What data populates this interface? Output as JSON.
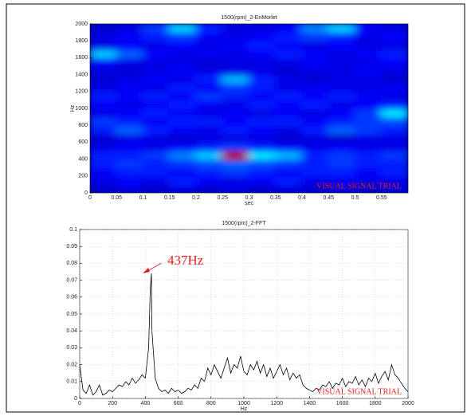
{
  "chart_data": [
    {
      "type": "heatmap",
      "title": "1500(rpm)_2-EnMorlet",
      "xlabel": "sec",
      "ylabel": "Hz",
      "colormap": "jet",
      "watermark": "VISUAL SIGNAL TRIAL",
      "x": [
        0.025,
        0.075,
        0.125,
        0.175,
        0.225,
        0.275,
        0.325,
        0.375,
        0.425,
        0.475,
        0.525,
        0.575
      ],
      "y": [
        50,
        150,
        250,
        350,
        450,
        550,
        650,
        750,
        850,
        950,
        1050,
        1150,
        1250,
        1350,
        1450,
        1550,
        1650,
        1750,
        1850,
        1950
      ],
      "values": [
        [
          0.08,
          0.1,
          0.08,
          0.1,
          0.08,
          0.1,
          0.08,
          0.1,
          0.08,
          0.1,
          0.08,
          0.1
        ],
        [
          0.1,
          0.12,
          0.1,
          0.15,
          0.12,
          0.1,
          0.12,
          0.15,
          0.1,
          0.12,
          0.1,
          0.1
        ],
        [
          0.12,
          0.15,
          0.15,
          0.12,
          0.15,
          0.18,
          0.15,
          0.12,
          0.15,
          0.15,
          0.12,
          0.15
        ],
        [
          0.15,
          0.18,
          0.15,
          0.18,
          0.2,
          0.22,
          0.2,
          0.18,
          0.15,
          0.18,
          0.15,
          0.15
        ],
        [
          0.15,
          0.15,
          0.18,
          0.25,
          0.32,
          0.95,
          0.35,
          0.3,
          0.15,
          0.18,
          0.15,
          0.18
        ],
        [
          0.1,
          0.12,
          0.1,
          0.12,
          0.15,
          0.18,
          0.15,
          0.12,
          0.1,
          0.12,
          0.1,
          0.1
        ],
        [
          0.08,
          0.1,
          0.1,
          0.08,
          0.1,
          0.1,
          0.1,
          0.08,
          0.1,
          0.08,
          0.1,
          0.1
        ],
        [
          0.15,
          0.22,
          0.15,
          0.12,
          0.1,
          0.15,
          0.12,
          0.1,
          0.15,
          0.22,
          0.18,
          0.15
        ],
        [
          0.18,
          0.15,
          0.12,
          0.15,
          0.15,
          0.12,
          0.15,
          0.15,
          0.12,
          0.15,
          0.18,
          0.2
        ],
        [
          0.1,
          0.12,
          0.15,
          0.12,
          0.1,
          0.12,
          0.1,
          0.12,
          0.1,
          0.12,
          0.18,
          0.35
        ],
        [
          0.12,
          0.1,
          0.12,
          0.15,
          0.12,
          0.1,
          0.15,
          0.12,
          0.15,
          0.1,
          0.12,
          0.15
        ],
        [
          0.15,
          0.12,
          0.15,
          0.12,
          0.18,
          0.15,
          0.12,
          0.15,
          0.12,
          0.15,
          0.12,
          0.1
        ],
        [
          0.1,
          0.12,
          0.1,
          0.15,
          0.12,
          0.18,
          0.15,
          0.1,
          0.12,
          0.1,
          0.1,
          0.12
        ],
        [
          0.08,
          0.1,
          0.12,
          0.1,
          0.15,
          0.3,
          0.15,
          0.1,
          0.08,
          0.1,
          0.1,
          0.08
        ],
        [
          0.1,
          0.08,
          0.1,
          0.12,
          0.1,
          0.1,
          0.1,
          0.08,
          0.1,
          0.1,
          0.12,
          0.1
        ],
        [
          0.12,
          0.1,
          0.1,
          0.1,
          0.08,
          0.1,
          0.1,
          0.1,
          0.12,
          0.1,
          0.1,
          0.12
        ],
        [
          0.32,
          0.22,
          0.12,
          0.1,
          0.12,
          0.1,
          0.12,
          0.15,
          0.12,
          0.1,
          0.12,
          0.15
        ],
        [
          0.1,
          0.12,
          0.1,
          0.12,
          0.1,
          0.12,
          0.15,
          0.12,
          0.1,
          0.12,
          0.1,
          0.1
        ],
        [
          0.1,
          0.12,
          0.15,
          0.18,
          0.12,
          0.1,
          0.12,
          0.15,
          0.18,
          0.15,
          0.1,
          0.12
        ],
        [
          0.08,
          0.1,
          0.18,
          0.32,
          0.15,
          0.1,
          0.1,
          0.12,
          0.25,
          0.32,
          0.12,
          0.1
        ]
      ],
      "xlim": [
        0,
        0.6
      ],
      "ylim": [
        0,
        2000
      ],
      "xticks": [
        0,
        0.05,
        0.1,
        0.15,
        0.2,
        0.25,
        0.3,
        0.35,
        0.4,
        0.45,
        0.5,
        0.55
      ],
      "yticks": [
        0,
        200,
        400,
        600,
        800,
        1000,
        1200,
        1400,
        1600,
        1800,
        2000
      ]
    },
    {
      "type": "line",
      "title": "1500(rpm)_2-FFT",
      "xlabel": "Hz",
      "annotation": "437Hz",
      "watermark": "VISUAL SIGNAL TRIAL",
      "color": "#000000",
      "grid": true,
      "x": [
        0,
        20,
        40,
        60,
        80,
        100,
        120,
        140,
        160,
        180,
        200,
        220,
        240,
        260,
        280,
        300,
        320,
        340,
        360,
        380,
        400,
        420,
        430,
        437,
        440,
        460,
        480,
        500,
        520,
        540,
        560,
        580,
        600,
        620,
        640,
        660,
        680,
        700,
        720,
        740,
        760,
        780,
        800,
        820,
        840,
        860,
        880,
        900,
        920,
        940,
        960,
        980,
        1000,
        1020,
        1040,
        1060,
        1080,
        1100,
        1120,
        1140,
        1160,
        1180,
        1200,
        1220,
        1240,
        1260,
        1280,
        1300,
        1320,
        1340,
        1360,
        1380,
        1400,
        1420,
        1440,
        1460,
        1480,
        1500,
        1520,
        1540,
        1560,
        1580,
        1600,
        1620,
        1640,
        1660,
        1680,
        1700,
        1720,
        1740,
        1760,
        1780,
        1800,
        1820,
        1840,
        1860,
        1880,
        1900,
        1920,
        1940,
        1960,
        1980,
        2000
      ],
      "values": [
        0.02,
        0.005,
        0.003,
        0.008,
        0.002,
        0.004,
        0.008,
        0.002,
        0.003,
        0.005,
        0.004,
        0.006,
        0.008,
        0.007,
        0.01,
        0.008,
        0.012,
        0.009,
        0.011,
        0.014,
        0.012,
        0.03,
        0.065,
        0.074,
        0.04,
        0.012,
        0.006,
        0.004,
        0.005,
        0.003,
        0.006,
        0.004,
        0.005,
        0.003,
        0.004,
        0.006,
        0.005,
        0.008,
        0.006,
        0.012,
        0.01,
        0.018,
        0.014,
        0.02,
        0.016,
        0.012,
        0.018,
        0.024,
        0.015,
        0.02,
        0.018,
        0.025,
        0.016,
        0.014,
        0.02,
        0.017,
        0.022,
        0.015,
        0.02,
        0.013,
        0.018,
        0.012,
        0.016,
        0.02,
        0.014,
        0.018,
        0.011,
        0.015,
        0.012,
        0.014,
        0.008,
        0.006,
        0.005,
        0.004,
        0.006,
        0.005,
        0.008,
        0.007,
        0.01,
        0.006,
        0.009,
        0.008,
        0.012,
        0.007,
        0.01,
        0.009,
        0.013,
        0.008,
        0.011,
        0.007,
        0.012,
        0.01,
        0.015,
        0.009,
        0.013,
        0.016,
        0.011,
        0.02,
        0.014,
        0.012,
        0.009,
        0.006,
        0.004
      ],
      "xlim": [
        0,
        2000
      ],
      "ylim": [
        0,
        0.1
      ],
      "xticks": [
        0,
        200,
        400,
        600,
        800,
        1000,
        1200,
        1400,
        1600,
        1800,
        2000
      ],
      "yticks": [
        0,
        0.01,
        0.02,
        0.03,
        0.04,
        0.05,
        0.06,
        0.07,
        0.08,
        0.09,
        0.1
      ]
    }
  ]
}
